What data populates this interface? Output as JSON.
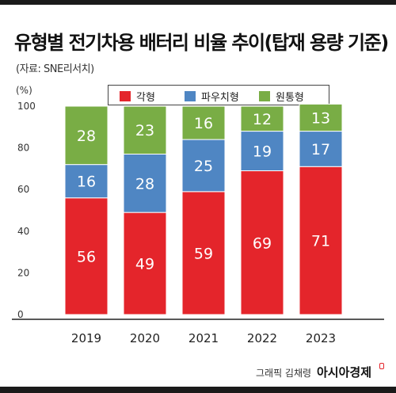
{
  "title": "유형별 전기차용 배터리 비율 추이(탑재 용량 기준)",
  "source": "(자료: SNE리서치)",
  "unit": "(%)",
  "footer": {
    "credit": "그래픽 김채령",
    "brand": "아시아경제"
  },
  "colors": {
    "각형": "#e4252b",
    "파우치형": "#4f86c3",
    "원통형": "#79ad45"
  },
  "chart_data": {
    "type": "bar",
    "stacked": true,
    "categories": [
      "2019",
      "2020",
      "2021",
      "2022",
      "2023"
    ],
    "series": [
      {
        "name": "각형",
        "values": [
          56,
          49,
          59,
          69,
          71
        ]
      },
      {
        "name": "파우치형",
        "values": [
          16,
          28,
          25,
          19,
          17
        ]
      },
      {
        "name": "원통형",
        "values": [
          28,
          23,
          16,
          12,
          13
        ]
      }
    ],
    "ylim": [
      0,
      100
    ],
    "yticks": [
      0,
      20,
      40,
      60,
      80,
      100
    ],
    "ylabel": "(%)",
    "legend": "top",
    "grid": false
  }
}
